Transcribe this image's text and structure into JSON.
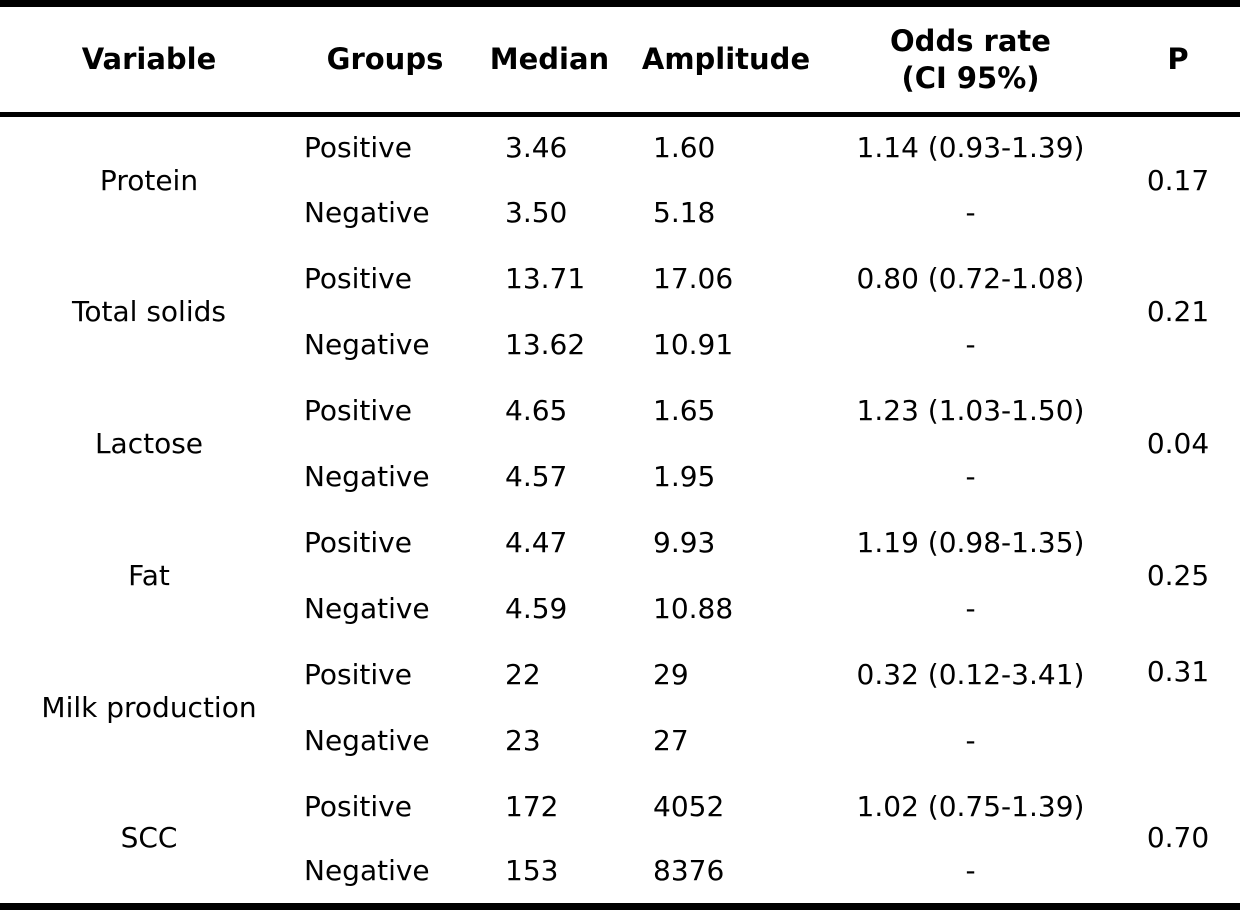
{
  "table": {
    "headers": {
      "variable": "Variable",
      "groups": "Groups",
      "median": "Median",
      "amplitude": "Amplitude",
      "odds_line1": "Odds rate",
      "odds_line2": "(CI 95%)",
      "p": "P"
    },
    "rows": [
      {
        "variable": "Protein",
        "positive": {
          "group": "Positive",
          "median": "3.46",
          "amplitude": "1.60",
          "odds": "1.14 (0.93-1.39)"
        },
        "negative": {
          "group": "Negative",
          "median": "3.50",
          "amplitude": "5.18",
          "odds": "-"
        },
        "p": "0.17"
      },
      {
        "variable": "Total solids",
        "positive": {
          "group": "Positive",
          "median": "13.71",
          "amplitude": "17.06",
          "odds": "0.80 (0.72-1.08)"
        },
        "negative": {
          "group": "Negative",
          "median": "13.62",
          "amplitude": "10.91",
          "odds": "-"
        },
        "p": "0.21"
      },
      {
        "variable": "Lactose",
        "positive": {
          "group": "Positive",
          "median": "4.65",
          "amplitude": "1.65",
          "odds": "1.23 (1.03-1.50)"
        },
        "negative": {
          "group": "Negative",
          "median": "4.57",
          "amplitude": "1.95",
          "odds": "-"
        },
        "p": "0.04"
      },
      {
        "variable": "Fat",
        "positive": {
          "group": "Positive",
          "median": "4.47",
          "amplitude": "9.93",
          "odds": "1.19 (0.98-1.35)"
        },
        "negative": {
          "group": "Negative",
          "median": "4.59",
          "amplitude": "10.88",
          "odds": "-"
        },
        "p": "0.25"
      },
      {
        "variable": "Milk production",
        "positive": {
          "group": "Positive",
          "median": "22",
          "amplitude": "29",
          "odds": "0.32 (0.12-3.41)"
        },
        "negative": {
          "group": "Negative",
          "median": "23",
          "amplitude": "27",
          "odds": "-"
        },
        "p": "0.31"
      },
      {
        "variable": "SCC",
        "positive": {
          "group": "Positive",
          "median": "172",
          "amplitude": "4052",
          "odds": "1.02 (0.75-1.39)"
        },
        "negative": {
          "group": "Negative",
          "median": "153",
          "amplitude": "8376",
          "odds": "-"
        },
        "p": "0.70"
      }
    ],
    "colors": {
      "text": "#000000",
      "background": "#ffffff",
      "rule": "#000000"
    }
  },
  "chart_data": {
    "type": "table",
    "title": "",
    "columns": [
      "Variable",
      "Groups",
      "Median",
      "Amplitude",
      "Odds rate (CI 95%)",
      "P"
    ],
    "rows": [
      [
        "Protein",
        "Positive",
        "3.46",
        "1.60",
        "1.14 (0.93-1.39)",
        "0.17"
      ],
      [
        "Protein",
        "Negative",
        "3.50",
        "5.18",
        "-",
        "0.17"
      ],
      [
        "Total solids",
        "Positive",
        "13.71",
        "17.06",
        "0.80 (0.72-1.08)",
        "0.21"
      ],
      [
        "Total solids",
        "Negative",
        "13.62",
        "10.91",
        "-",
        "0.21"
      ],
      [
        "Lactose",
        "Positive",
        "4.65",
        "1.65",
        "1.23 (1.03-1.50)",
        "0.04"
      ],
      [
        "Lactose",
        "Negative",
        "4.57",
        "1.95",
        "-",
        "0.04"
      ],
      [
        "Fat",
        "Positive",
        "4.47",
        "9.93",
        "1.19 (0.98-1.35)",
        "0.25"
      ],
      [
        "Fat",
        "Negative",
        "4.59",
        "10.88",
        "-",
        "0.25"
      ],
      [
        "Milk production",
        "Positive",
        "22",
        "29",
        "0.32 (0.12-3.41)",
        "0.31"
      ],
      [
        "Milk production",
        "Negative",
        "23",
        "27",
        "-",
        "0.31"
      ],
      [
        "SCC",
        "Positive",
        "172",
        "4052",
        "1.02 (0.75-1.39)",
        "0.70"
      ],
      [
        "SCC",
        "Negative",
        "153",
        "8376",
        "-",
        "0.70"
      ]
    ]
  }
}
